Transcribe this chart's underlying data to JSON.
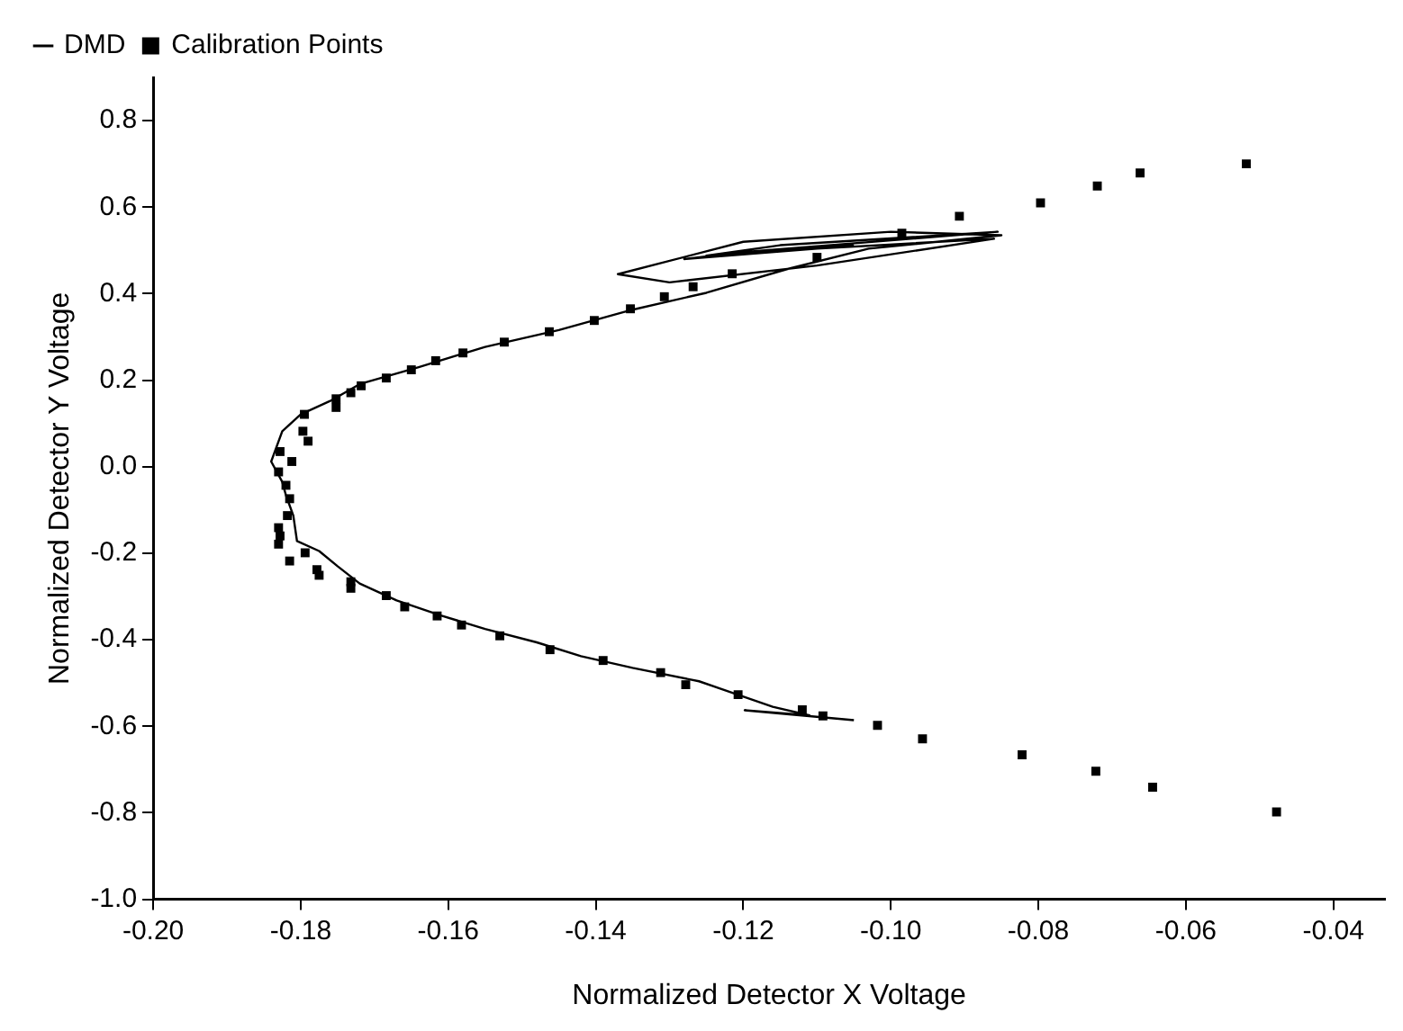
{
  "chart_data": {
    "type": "scatter",
    "xlabel": "Normalized Detector X Voltage",
    "ylabel": "Normalized Detector Y Voltage",
    "xlim": [
      -0.2,
      -0.033
    ],
    "ylim": [
      -1.0,
      0.9
    ],
    "xticks": [
      {
        "value": -0.2,
        "label": "-0.20"
      },
      {
        "value": -0.18,
        "label": "-0.18"
      },
      {
        "value": -0.16,
        "label": "-0.16"
      },
      {
        "value": -0.14,
        "label": "-0.14"
      },
      {
        "value": -0.12,
        "label": "-0.12"
      },
      {
        "value": -0.1,
        "label": "-0.10"
      },
      {
        "value": -0.08,
        "label": "-0.08"
      },
      {
        "value": -0.06,
        "label": "-0.06"
      },
      {
        "value": -0.04,
        "label": "-0.04"
      }
    ],
    "yticks": [
      {
        "value": -1.0,
        "label": "-1.0"
      },
      -0.8,
      -0.6,
      -0.4,
      -0.2,
      {
        "value": 0,
        "label": "0.0"
      },
      0.2,
      0.4,
      0.6,
      0.8
    ],
    "grid": false,
    "legend": "top left",
    "series": [
      {
        "name": "DMD",
        "type": "line",
        "color": "#000000",
        "marker": "none",
        "x": [
          -0.105,
          -0.1198,
          -0.111,
          -0.116,
          -0.126,
          -0.135,
          -0.142,
          -0.148,
          -0.155,
          -0.161,
          -0.167,
          -0.172,
          -0.175,
          -0.1775,
          -0.1805,
          -0.181,
          -0.182,
          -0.1825,
          -0.184,
          -0.1825,
          -0.18,
          -0.176,
          -0.172,
          -0.164,
          -0.155,
          -0.145,
          -0.135,
          -0.125,
          -0.114,
          -0.103,
          -0.085,
          -0.1,
          -0.12,
          -0.137,
          -0.13,
          -0.11,
          -0.086,
          -0.11,
          -0.128,
          -0.12,
          -0.0855,
          -0.115,
          -0.125,
          -0.105
        ],
        "values": [
          -0.586,
          -0.563,
          -0.575,
          -0.555,
          -0.496,
          -0.465,
          -0.438,
          -0.406,
          -0.375,
          -0.344,
          -0.309,
          -0.27,
          -0.23,
          -0.195,
          -0.172,
          -0.113,
          -0.066,
          -0.035,
          0.012,
          0.082,
          0.121,
          0.152,
          0.191,
          0.23,
          0.277,
          0.316,
          0.363,
          0.402,
          0.457,
          0.504,
          0.535,
          0.543,
          0.52,
          0.445,
          0.426,
          0.465,
          0.527,
          0.504,
          0.48,
          0.496,
          0.543,
          0.512,
          0.488,
          0.512
        ]
      },
      {
        "name": "Calibration Points",
        "type": "scatter",
        "color": "#000000",
        "marker": "square",
        "x": [
          -0.0518,
          -0.0662,
          -0.072,
          -0.0797,
          -0.0907,
          -0.0985,
          -0.11,
          -0.1215,
          -0.1268,
          -0.1307,
          -0.1353,
          -0.1402,
          -0.1463,
          -0.1524,
          -0.158,
          -0.1617,
          -0.165,
          -0.1684,
          -0.1718,
          -0.1732,
          -0.1752,
          -0.1752,
          -0.1795,
          -0.1797,
          -0.179,
          -0.1828,
          -0.1812,
          -0.183,
          -0.182,
          -0.1815,
          -0.1818,
          -0.183,
          -0.1828,
          -0.183,
          -0.1794,
          -0.1815,
          -0.1778,
          -0.1775,
          -0.1732,
          -0.1732,
          -0.1684,
          -0.1659,
          -0.1615,
          -0.1582,
          -0.153,
          -0.1462,
          -0.139,
          -0.1312,
          -0.1278,
          -0.1207,
          -0.112,
          -0.1092,
          -0.1018,
          -0.0957,
          -0.0822,
          -0.0722,
          -0.0645,
          -0.0477
        ],
        "values": [
          0.7,
          0.679,
          0.649,
          0.61,
          0.579,
          0.54,
          0.484,
          0.446,
          0.416,
          0.393,
          0.365,
          0.338,
          0.312,
          0.288,
          0.263,
          0.245,
          0.224,
          0.205,
          0.187,
          0.171,
          0.157,
          0.137,
          0.121,
          0.082,
          0.059,
          0.035,
          0.012,
          -0.012,
          -0.043,
          -0.074,
          -0.113,
          -0.141,
          -0.16,
          -0.179,
          -0.199,
          -0.218,
          -0.238,
          -0.251,
          -0.266,
          -0.281,
          -0.298,
          -0.324,
          -0.345,
          -0.366,
          -0.391,
          -0.423,
          -0.448,
          -0.476,
          -0.504,
          -0.527,
          -0.562,
          -0.576,
          -0.598,
          -0.629,
          -0.666,
          -0.704,
          -0.741,
          -0.798
        ]
      }
    ]
  }
}
